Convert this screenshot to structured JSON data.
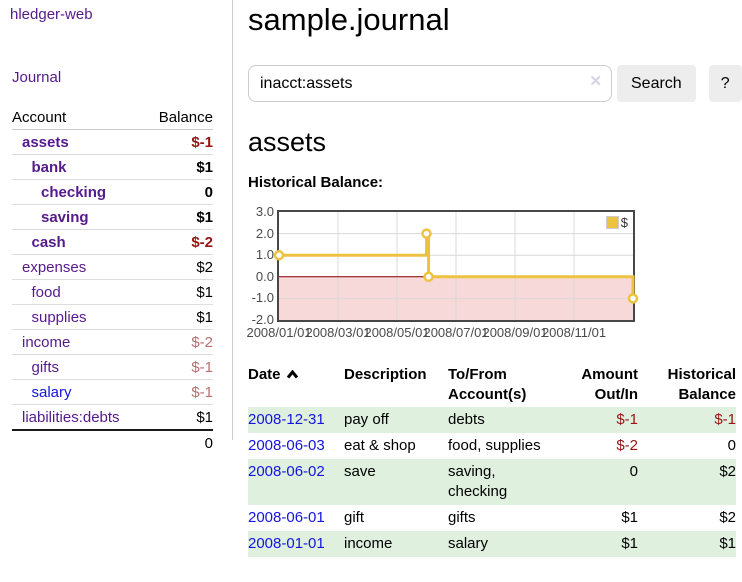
{
  "sidebar": {
    "app_title": "hledger-web",
    "journal_link": "Journal",
    "accounts": {
      "header_account": "Account",
      "header_balance": "Balance",
      "rows": [
        {
          "name": "assets",
          "depth": 1,
          "bold": true,
          "balance": "$-1",
          "balance_style": "neg-strong"
        },
        {
          "name": "bank",
          "depth": 2,
          "bold": true,
          "balance": "$1",
          "balance_style": "normal"
        },
        {
          "name": "checking",
          "depth": 3,
          "bold": true,
          "balance": "0",
          "balance_style": "normal"
        },
        {
          "name": "saving",
          "depth": 3,
          "bold": true,
          "balance": "$1",
          "balance_style": "normal"
        },
        {
          "name": "cash",
          "depth": 2,
          "bold": true,
          "balance": "$-2",
          "balance_style": "neg-strong"
        },
        {
          "name": "expenses",
          "depth": 1,
          "bold": false,
          "balance": "$2",
          "balance_style": "normal"
        },
        {
          "name": "food",
          "depth": 2,
          "bold": false,
          "balance": "$1",
          "balance_style": "normal"
        },
        {
          "name": "supplies",
          "depth": 2,
          "bold": false,
          "balance": "$1",
          "balance_style": "normal"
        },
        {
          "name": "income",
          "depth": 1,
          "bold": false,
          "balance": "$-2",
          "balance_style": "neg-soft"
        },
        {
          "name": "gifts",
          "depth": 2,
          "bold": false,
          "balance": "$-1",
          "balance_style": "neg-soft"
        },
        {
          "name": "salary",
          "depth": 2,
          "bold": false,
          "balance": "$-1",
          "balance_style": "neg-soft",
          "link_color": "blue"
        },
        {
          "name": "liabilities:debts",
          "depth": 1,
          "bold": false,
          "balance": "$1",
          "balance_style": "normal"
        }
      ],
      "total": "0"
    }
  },
  "header": {
    "title": "sample.journal"
  },
  "search": {
    "query": "inacct:assets",
    "clear_icon": "✕",
    "button_label": "Search",
    "help_label": "?"
  },
  "account_page": {
    "heading": "assets",
    "chart_label": "Historical Balance:"
  },
  "chart_data": {
    "type": "line",
    "title": "Historical Balance:",
    "step": true,
    "xlim": [
      0,
      12
    ],
    "ylim": [
      -2,
      3
    ],
    "grid": true,
    "x_unit": "months since 2008-01-01",
    "x_ticks": [
      {
        "x": 0,
        "label": "2008/01/01"
      },
      {
        "x": 2,
        "label": "2008/03/01"
      },
      {
        "x": 4,
        "label": "2008/05/01"
      },
      {
        "x": 6,
        "label": "2008/07/01"
      },
      {
        "x": 8,
        "label": "2008/09/01"
      },
      {
        "x": 10,
        "label": "2008/11/01"
      }
    ],
    "y_ticks": [
      {
        "y": 3,
        "label": "3.0"
      },
      {
        "y": 2,
        "label": "2.0"
      },
      {
        "y": 1,
        "label": "1.0"
      },
      {
        "y": 0,
        "label": "0.0"
      },
      {
        "y": -1,
        "label": "-1.0"
      },
      {
        "y": -2,
        "label": "-2.0"
      }
    ],
    "series": [
      {
        "name": "$",
        "color": "#edc240",
        "points": [
          {
            "date": "2008-01-01",
            "x": 0,
            "y": 1
          },
          {
            "date": "2008-06-01",
            "x": 5,
            "y": 2
          },
          {
            "date": "2008-06-03",
            "x": 5.07,
            "y": 0
          },
          {
            "date": "2008-12-31",
            "x": 12,
            "y": -1
          }
        ]
      }
    ],
    "legend": {
      "position": "top-right",
      "label": "$"
    },
    "negative_region": {
      "from": -2,
      "to": 0,
      "fill": "#f8d9d9",
      "zero_line_color": "#8b0000"
    }
  },
  "register": {
    "headers": {
      "date": "Date",
      "description": "Description",
      "tofrom": "To/From Account(s)",
      "amount": "Amount Out/In",
      "balance": "Historical Balance"
    },
    "sort": "date ascending",
    "rows": [
      {
        "date": "2008-12-31",
        "description": "pay off",
        "accounts": "debts",
        "amount": "$-1",
        "amount_neg": true,
        "balance": "$-1",
        "balance_neg": true
      },
      {
        "date": "2008-06-03",
        "description": "eat & shop",
        "accounts": "food, supplies",
        "amount": "$-2",
        "amount_neg": true,
        "balance": "0",
        "balance_neg": false
      },
      {
        "date": "2008-06-02",
        "description": "save",
        "accounts": "saving, checking",
        "amount": "0",
        "amount_neg": false,
        "balance": "$2",
        "balance_neg": false
      },
      {
        "date": "2008-06-01",
        "description": "gift",
        "accounts": "gifts",
        "amount": "$1",
        "amount_neg": false,
        "balance": "$2",
        "balance_neg": false
      },
      {
        "date": "2008-01-01",
        "description": "income",
        "accounts": "salary",
        "amount": "$1",
        "amount_neg": false,
        "balance": "$1",
        "balance_neg": false
      }
    ]
  },
  "colors": {
    "link_purple": "#551a8b",
    "link_blue": "#1414dd",
    "negative_strong": "#9b1313",
    "negative_soft": "#b96f6f",
    "row_green": "#dff0df",
    "series_yellow": "#edc240",
    "negative_area_pink": "#f8d9d9",
    "zero_line_red": "#8b0000"
  }
}
